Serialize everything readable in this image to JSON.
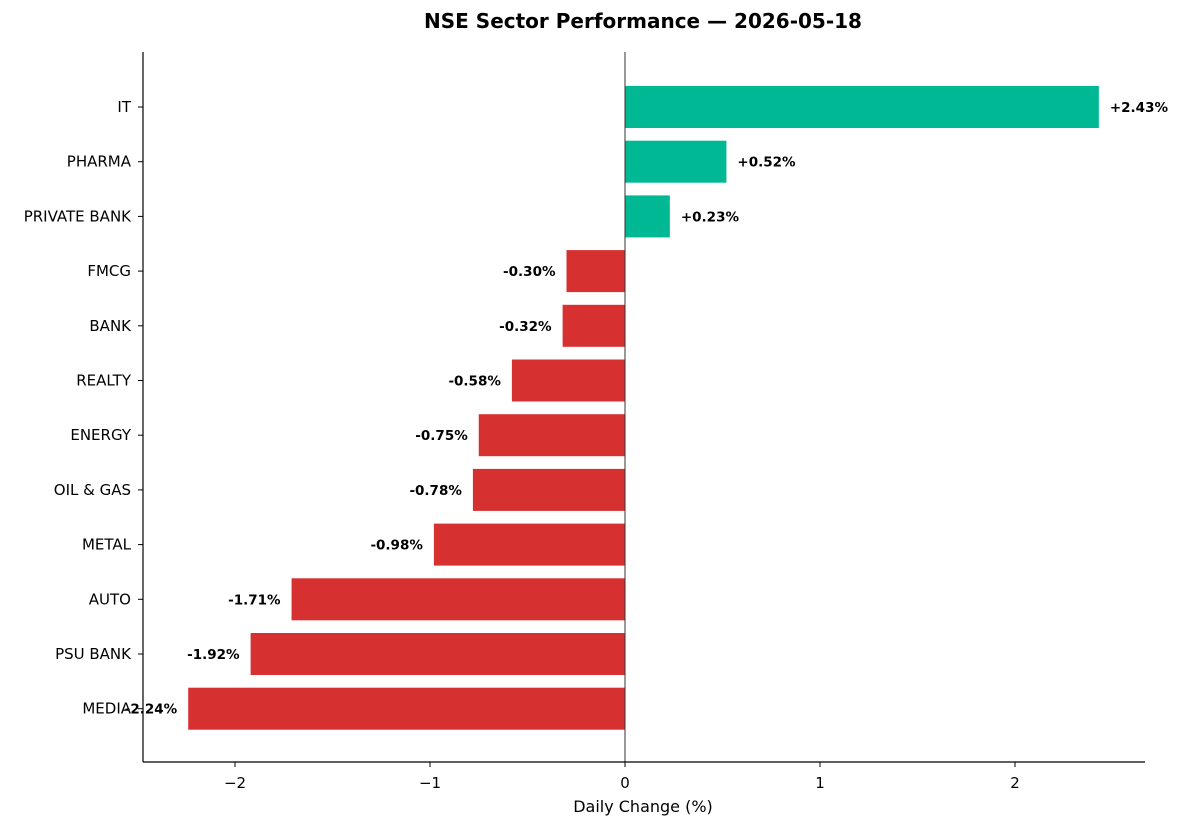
{
  "chart_data": {
    "type": "bar",
    "orientation": "horizontal",
    "title": "NSE Sector Performance — 2026-05-18",
    "xlabel": "Daily Change (%)",
    "ylabel": "",
    "categories": [
      "IT",
      "PHARMA",
      "PRIVATE BANK",
      "FMCG",
      "BANK",
      "REALTY",
      "ENERGY",
      "OIL & GAS",
      "METAL",
      "AUTO",
      "PSU BANK",
      "MEDIA"
    ],
    "values": [
      2.43,
      0.52,
      0.23,
      -0.3,
      -0.32,
      -0.58,
      -0.75,
      -0.78,
      -0.98,
      -1.71,
      -1.92,
      -2.24
    ],
    "data_labels": [
      "+2.43%",
      "+0.52%",
      "+0.23%",
      "-0.30%",
      "-0.32%",
      "-0.58%",
      "-0.75%",
      "-0.78%",
      "-0.98%",
      "-1.71%",
      "-1.92%",
      "-2.24%"
    ],
    "xlim": [
      -2.47,
      2.67
    ],
    "xticks": [
      -2,
      -1,
      0,
      1,
      2
    ],
    "xtick_labels": [
      "−2",
      "−1",
      "0",
      "1",
      "2"
    ],
    "colors": {
      "positive": "#00b894",
      "negative": "#d63031"
    },
    "grid": false,
    "legend": "none"
  }
}
